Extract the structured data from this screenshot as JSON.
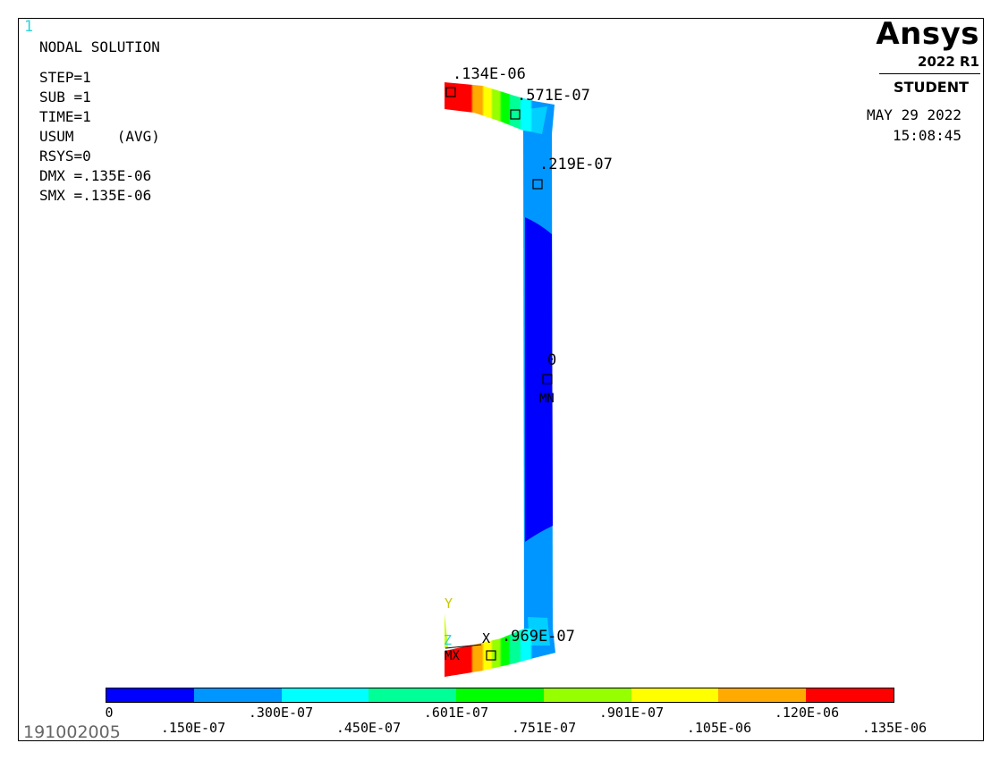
{
  "window_number": "1",
  "plot_title": "NODAL SOLUTION",
  "info_lines": [
    "STEP=1",
    "SUB =1",
    "TIME=1",
    "USUM     (AVG)",
    "RSYS=0",
    "DMX =.135E-06",
    "SMX =.135E-06"
  ],
  "logo": {
    "name": "Ansys",
    "version": "2022 R1",
    "edition": "STUDENT"
  },
  "date": "MAY 29 2022",
  "time": "15:08:45",
  "jobname": "191002005",
  "probe_labels": [
    ".134E-06",
    ".571E-07",
    ".219E-07",
    "0",
    ".969E-07"
  ],
  "min_marker": "MN",
  "max_marker": "MX",
  "triad": {
    "y": "Y",
    "z": "Z",
    "x": "X"
  },
  "legend": {
    "colors": [
      "#0000ff",
      "#0096ff",
      "#00ffff",
      "#00ff96",
      "#00ff00",
      "#96ff00",
      "#ffff00",
      "#ffaa00",
      "#ff0000"
    ],
    "labels": [
      "0",
      ".150E-07",
      ".300E-07",
      ".450E-07",
      ".601E-07",
      ".751E-07",
      ".901E-07",
      ".105E-06",
      ".120E-06",
      ".135E-06"
    ]
  }
}
